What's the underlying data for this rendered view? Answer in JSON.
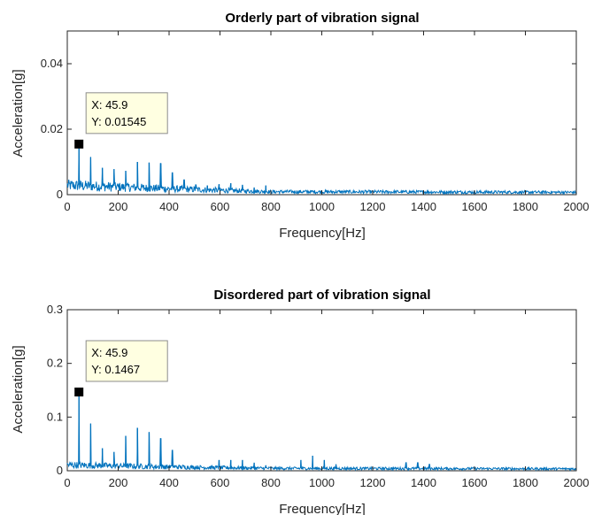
{
  "figure": {
    "background": "#ffffff",
    "axis_color": "#262626",
    "line_color": "#0072bd",
    "tip_bg": "#ffffe1",
    "marker_color": "#000000"
  },
  "chart_data": [
    {
      "type": "line",
      "title": "Orderly part of vibration signal",
      "xlabel": "Frequency[Hz]",
      "ylabel": "Acceleration[g]",
      "xlim": [
        0,
        2000
      ],
      "ylim": [
        0,
        0.05
      ],
      "xticks": [
        0,
        200,
        400,
        600,
        800,
        1000,
        1200,
        1400,
        1600,
        1800,
        2000
      ],
      "xtick_labels": [
        "0",
        "200",
        "400",
        "600",
        "800",
        "1000",
        "1200",
        "1400",
        "1600",
        "1800",
        "2000"
      ],
      "yticks": [
        0,
        0.02,
        0.04
      ],
      "ytick_labels": [
        "0",
        "0.02",
        "0.04"
      ],
      "grid": false,
      "series": [
        {
          "peaks": [
            {
              "x": 45.9,
              "y": 0.01545
            },
            {
              "x": 91.8,
              "y": 0.0115
            },
            {
              "x": 137.7,
              "y": 0.0082
            },
            {
              "x": 183.6,
              "y": 0.0078
            },
            {
              "x": 229.5,
              "y": 0.0073
            },
            {
              "x": 275.4,
              "y": 0.01
            },
            {
              "x": 321.3,
              "y": 0.0098
            },
            {
              "x": 367.2,
              "y": 0.0095
            },
            {
              "x": 413.1,
              "y": 0.0067
            },
            {
              "x": 459.0,
              "y": 0.0045
            },
            {
              "x": 504.9,
              "y": 0.003
            },
            {
              "x": 550.8,
              "y": 0.0028
            },
            {
              "x": 596.7,
              "y": 0.0032
            },
            {
              "x": 642.6,
              "y": 0.0035
            },
            {
              "x": 688.5,
              "y": 0.003
            },
            {
              "x": 734.4,
              "y": 0.0022
            },
            {
              "x": 780.3,
              "y": 0.0028
            }
          ],
          "noise_floor": [
            {
              "x": 0,
              "y": 0.0032
            },
            {
              "x": 400,
              "y": 0.002
            },
            {
              "x": 800,
              "y": 0.001
            },
            {
              "x": 2000,
              "y": 0.0008
            }
          ]
        }
      ],
      "datatip": {
        "x": 45.9,
        "y": 0.01545,
        "x_label": "X: 45.9",
        "y_label": "Y: 0.01545"
      }
    },
    {
      "type": "line",
      "title": "Disordered part of vibration signal",
      "xlabel": "Frequency[Hz]",
      "ylabel": "Acceleration[g]",
      "xlim": [
        0,
        2000
      ],
      "ylim": [
        0,
        0.3
      ],
      "xticks": [
        0,
        200,
        400,
        600,
        800,
        1000,
        1200,
        1400,
        1600,
        1800,
        2000
      ],
      "xtick_labels": [
        "0",
        "200",
        "400",
        "600",
        "800",
        "1000",
        "1200",
        "1400",
        "1600",
        "1800",
        "2000"
      ],
      "yticks": [
        0,
        0.1,
        0.2,
        0.3
      ],
      "ytick_labels": [
        "0",
        "0.1",
        "0.2",
        "0.3"
      ],
      "grid": false,
      "series": [
        {
          "peaks": [
            {
              "x": 45.9,
              "y": 0.1467
            },
            {
              "x": 91.8,
              "y": 0.088
            },
            {
              "x": 137.7,
              "y": 0.042
            },
            {
              "x": 183.6,
              "y": 0.035
            },
            {
              "x": 229.5,
              "y": 0.065
            },
            {
              "x": 275.4,
              "y": 0.08
            },
            {
              "x": 321.3,
              "y": 0.072
            },
            {
              "x": 367.2,
              "y": 0.06
            },
            {
              "x": 413.1,
              "y": 0.038
            },
            {
              "x": 596.7,
              "y": 0.02
            },
            {
              "x": 642.6,
              "y": 0.02
            },
            {
              "x": 688.5,
              "y": 0.02
            },
            {
              "x": 734.4,
              "y": 0.015
            },
            {
              "x": 780.3,
              "y": 0.01
            },
            {
              "x": 918.0,
              "y": 0.02
            },
            {
              "x": 963.9,
              "y": 0.028
            },
            {
              "x": 1009.8,
              "y": 0.02
            },
            {
              "x": 1055.7,
              "y": 0.012
            },
            {
              "x": 1331.1,
              "y": 0.015
            },
            {
              "x": 1377.0,
              "y": 0.015
            },
            {
              "x": 1422.9,
              "y": 0.012
            }
          ],
          "noise_floor": [
            {
              "x": 0,
              "y": 0.012
            },
            {
              "x": 400,
              "y": 0.008
            },
            {
              "x": 800,
              "y": 0.005
            },
            {
              "x": 2000,
              "y": 0.004
            }
          ]
        }
      ],
      "datatip": {
        "x": 45.9,
        "y": 0.1467,
        "x_label": "X: 45.9",
        "y_label": "Y: 0.1467"
      }
    }
  ]
}
